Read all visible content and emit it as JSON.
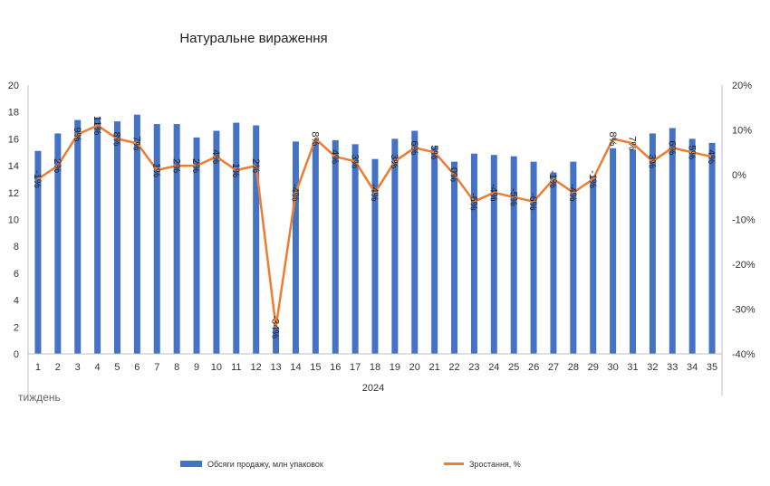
{
  "chart_data": {
    "type": "bar",
    "title": "Натуральне вираження",
    "categories": [
      "1",
      "2",
      "3",
      "4",
      "5",
      "6",
      "7",
      "8",
      "9",
      "10",
      "11",
      "12",
      "13",
      "14",
      "15",
      "16",
      "17",
      "18",
      "19",
      "20",
      "21",
      "22",
      "23",
      "24",
      "25",
      "26",
      "27",
      "28",
      "29",
      "30",
      "31",
      "32",
      "33",
      "34",
      "35"
    ],
    "category_group": "2024",
    "xlabel": "тиждень",
    "ylim": [
      0,
      20
    ],
    "ytick_step": 2,
    "y2lim": [
      -40,
      20
    ],
    "y2tick_step": 10,
    "y2_format": "percent",
    "series": [
      {
        "name": "Обсяги продажу, млн упаковок",
        "type": "bar",
        "axis": "left",
        "color": "#4472C4",
        "values": [
          15.1,
          16.4,
          17.4,
          17.6,
          17.3,
          17.8,
          17.1,
          17.1,
          16.1,
          16.6,
          17.2,
          17.0,
          1.9,
          15.8,
          15.8,
          15.9,
          15.6,
          14.5,
          16.0,
          16.6,
          15.4,
          14.3,
          14.9,
          14.8,
          14.7,
          14.3,
          13.5,
          14.3,
          13.2,
          15.3,
          15.2,
          16.4,
          16.8,
          16.0,
          15.7
        ]
      },
      {
        "name": "Зростання, %",
        "type": "line",
        "axis": "right",
        "color": "#ED7D31",
        "values": [
          -1,
          2,
          9,
          11,
          8,
          7,
          1,
          2,
          2,
          4,
          1,
          2,
          -34,
          -4,
          8,
          4,
          3,
          -4,
          3,
          6,
          5,
          0,
          -6,
          -4,
          -5,
          -6,
          -1,
          -4,
          -1,
          8,
          7,
          3,
          6,
          5,
          4
        ],
        "data_labels": [
          "-1%",
          "2%",
          "9%",
          "11%",
          "8%",
          "7%",
          "1%",
          "2%",
          "2%",
          "4%",
          "1%",
          "2%",
          "-34%",
          "-4%",
          "8%",
          "4%",
          "3%",
          "-4%",
          "3%",
          "6%",
          "5%",
          "0%",
          "-6%",
          "-4%",
          "-5%",
          "-6%",
          "-1%",
          "-4%",
          "-1%",
          "8%",
          "7%",
          "3%",
          "6%",
          "5%",
          "4%"
        ]
      }
    ],
    "legend_position": "bottom",
    "grid": false
  }
}
